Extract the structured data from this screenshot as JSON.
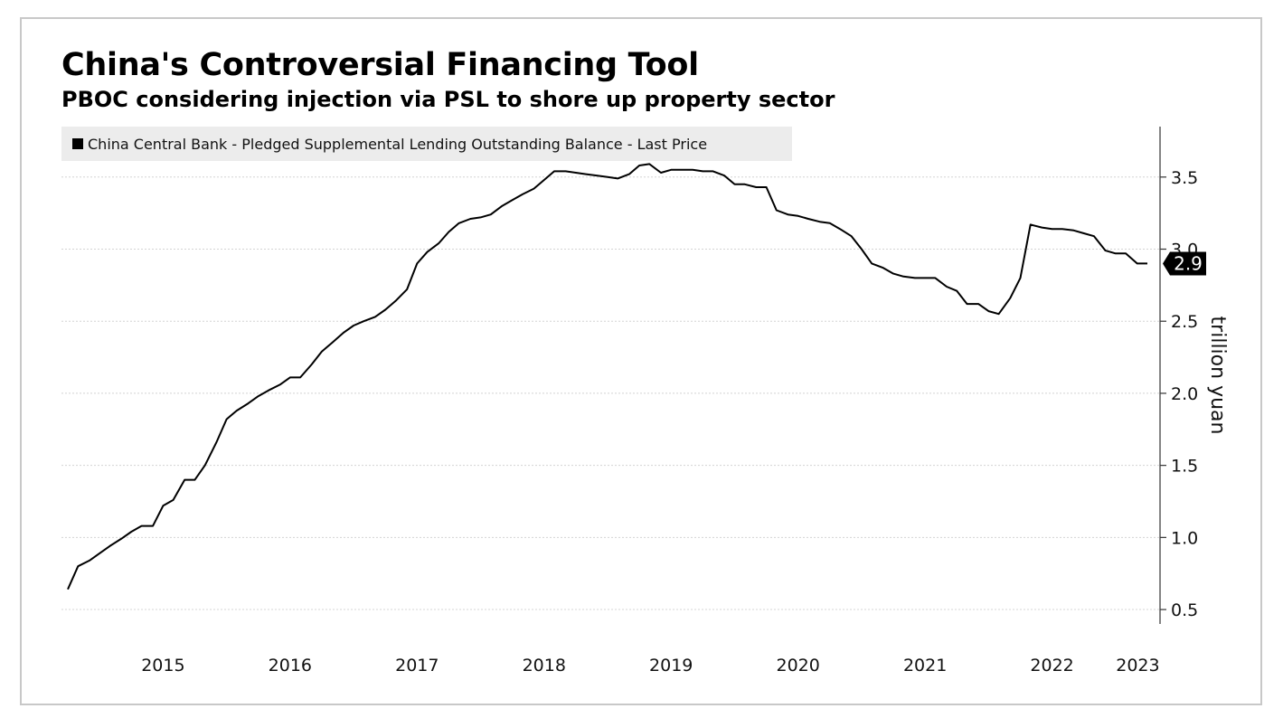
{
  "chart_data": {
    "type": "line",
    "title": "China's Controversial Financing Tool",
    "subtitle": "PBOC considering injection via PSL to shore up property sector",
    "ylabel": "trillion yuan",
    "xlabel": "",
    "ylim": [
      0.4,
      3.85
    ],
    "yticks": [
      0.5,
      1.0,
      1.5,
      2.0,
      2.5,
      3.0,
      3.5
    ],
    "ytick_labels": [
      "0.5",
      "1.0",
      "1.5",
      "2.0",
      "2.5",
      "3.0",
      "3.5"
    ],
    "xlim": [
      2014.7,
      2023.35
    ],
    "xtick_labels": [
      "2015",
      "2016",
      "2017",
      "2018",
      "2019",
      "2020",
      "2021",
      "2022",
      "2023"
    ],
    "grid": true,
    "legend_position": "top-left",
    "last_value_label": "2.9",
    "series": [
      {
        "name": "China Central Bank - Pledged Supplemental Lending Outstanding Balance - Last Price",
        "color": "#000000",
        "points": [
          [
            2014.75,
            0.64
          ],
          [
            2014.83,
            0.8
          ],
          [
            2014.92,
            0.84
          ],
          [
            2015.0,
            0.89
          ],
          [
            2015.08,
            0.94
          ],
          [
            2015.17,
            0.99
          ],
          [
            2015.25,
            1.04
          ],
          [
            2015.33,
            1.08
          ],
          [
            2015.42,
            1.08
          ],
          [
            2015.5,
            1.22
          ],
          [
            2015.58,
            1.26
          ],
          [
            2015.67,
            1.4
          ],
          [
            2015.75,
            1.4
          ],
          [
            2015.83,
            1.5
          ],
          [
            2015.92,
            1.66
          ],
          [
            2016.0,
            1.82
          ],
          [
            2016.08,
            1.88
          ],
          [
            2016.17,
            1.93
          ],
          [
            2016.25,
            1.98
          ],
          [
            2016.33,
            2.02
          ],
          [
            2016.42,
            2.06
          ],
          [
            2016.5,
            2.11
          ],
          [
            2016.58,
            2.11
          ],
          [
            2016.67,
            2.2
          ],
          [
            2016.75,
            2.29
          ],
          [
            2016.83,
            2.35
          ],
          [
            2016.92,
            2.42
          ],
          [
            2017.0,
            2.47
          ],
          [
            2017.08,
            2.5
          ],
          [
            2017.17,
            2.53
          ],
          [
            2017.25,
            2.58
          ],
          [
            2017.33,
            2.64
          ],
          [
            2017.42,
            2.72
          ],
          [
            2017.5,
            2.9
          ],
          [
            2017.58,
            2.98
          ],
          [
            2017.67,
            3.04
          ],
          [
            2017.75,
            3.12
          ],
          [
            2017.83,
            3.18
          ],
          [
            2017.92,
            3.21
          ],
          [
            2018.0,
            3.22
          ],
          [
            2018.08,
            3.24
          ],
          [
            2018.17,
            3.3
          ],
          [
            2018.25,
            3.34
          ],
          [
            2018.33,
            3.38
          ],
          [
            2018.42,
            3.42
          ],
          [
            2018.5,
            3.48
          ],
          [
            2018.58,
            3.54
          ],
          [
            2018.67,
            3.54
          ],
          [
            2018.75,
            3.53
          ],
          [
            2018.83,
            3.52
          ],
          [
            2018.92,
            3.51
          ],
          [
            2019.0,
            3.5
          ],
          [
            2019.08,
            3.49
          ],
          [
            2019.17,
            3.52
          ],
          [
            2019.25,
            3.58
          ],
          [
            2019.33,
            3.59
          ],
          [
            2019.42,
            3.53
          ],
          [
            2019.5,
            3.55
          ],
          [
            2019.58,
            3.55
          ],
          [
            2019.67,
            3.55
          ],
          [
            2019.75,
            3.54
          ],
          [
            2019.83,
            3.54
          ],
          [
            2019.92,
            3.51
          ],
          [
            2020.0,
            3.45
          ],
          [
            2020.08,
            3.45
          ],
          [
            2020.17,
            3.43
          ],
          [
            2020.25,
            3.43
          ],
          [
            2020.33,
            3.27
          ],
          [
            2020.42,
            3.24
          ],
          [
            2020.5,
            3.23
          ],
          [
            2020.58,
            3.21
          ],
          [
            2020.67,
            3.19
          ],
          [
            2020.75,
            3.18
          ],
          [
            2020.83,
            3.14
          ],
          [
            2020.92,
            3.09
          ],
          [
            2021.0,
            3.0
          ],
          [
            2021.08,
            2.9
          ],
          [
            2021.17,
            2.87
          ],
          [
            2021.25,
            2.83
          ],
          [
            2021.33,
            2.81
          ],
          [
            2021.42,
            2.8
          ],
          [
            2021.5,
            2.8
          ],
          [
            2021.58,
            2.8
          ],
          [
            2021.67,
            2.74
          ],
          [
            2021.75,
            2.71
          ],
          [
            2021.83,
            2.62
          ],
          [
            2021.92,
            2.62
          ],
          [
            2022.0,
            2.57
          ],
          [
            2022.08,
            2.55
          ],
          [
            2022.17,
            2.66
          ],
          [
            2022.25,
            2.8
          ],
          [
            2022.33,
            3.17
          ],
          [
            2022.42,
            3.15
          ],
          [
            2022.5,
            3.14
          ],
          [
            2022.58,
            3.14
          ],
          [
            2022.67,
            3.13
          ],
          [
            2022.75,
            3.11
          ],
          [
            2022.83,
            3.09
          ],
          [
            2022.92,
            2.99
          ],
          [
            2023.0,
            2.97
          ],
          [
            2023.08,
            2.97
          ],
          [
            2023.17,
            2.9
          ],
          [
            2023.25,
            2.9
          ]
        ]
      }
    ]
  }
}
